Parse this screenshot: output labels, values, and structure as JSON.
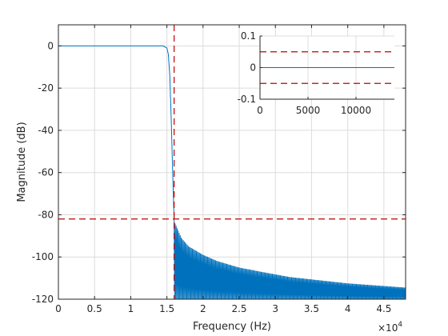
{
  "chart_data": [
    {
      "type": "line",
      "title": "",
      "xlabel": "Frequency (Hz)",
      "ylabel": "Magnitude (dB)",
      "x_exponent_label": "×10^4",
      "x_exponent_base": "×10",
      "x_exponent_power": "4",
      "xlim": [
        0,
        48000
      ],
      "ylim": [
        -120,
        10
      ],
      "xticks": [
        0,
        5000,
        10000,
        15000,
        20000,
        25000,
        30000,
        35000,
        40000,
        45000
      ],
      "xtick_labels": [
        "0",
        "0.5",
        "1",
        "1.5",
        "2",
        "2.5",
        "3",
        "3.5",
        "4",
        "4.5"
      ],
      "yticks": [
        0,
        -20,
        -40,
        -60,
        -80,
        -100,
        -120
      ],
      "ytick_labels": [
        "0",
        "-20",
        "-40",
        "-60",
        "-80",
        "-100",
        "-120"
      ],
      "grid": true,
      "series_color": "#0072bd",
      "reference_color": "#c00000",
      "passband": {
        "x": [
          0,
          14500
        ],
        "y": [
          0,
          0
        ]
      },
      "transition": {
        "x": [
          14500,
          15000,
          15200,
          15400,
          15600,
          15800,
          16000
        ],
        "y": [
          0,
          -1,
          -4,
          -14,
          -35,
          -60,
          -83
        ]
      },
      "stopband_envelope": {
        "x": [
          16000,
          17000,
          18000,
          20000,
          22000,
          25000,
          28000,
          32000,
          36000,
          40000,
          44000,
          48000
        ],
        "y": [
          -83,
          -91,
          -95,
          -99,
          -102,
          -105,
          -107,
          -109.5,
          -111,
          -112.5,
          -113.5,
          -114.5
        ]
      },
      "vertical_reference": {
        "x": 16000,
        "style": "dashed"
      },
      "horizontal_reference": {
        "y": -82,
        "style": "dashed"
      }
    },
    {
      "type": "line",
      "title": "",
      "xlabel": "",
      "ylabel": "",
      "xlim": [
        0,
        14000
      ],
      "ylim": [
        -0.1,
        0.1
      ],
      "xticks": [
        0,
        5000,
        10000
      ],
      "xtick_labels": [
        "0",
        "5000",
        "10000"
      ],
      "yticks": [
        0.1,
        0,
        -0.1
      ],
      "ytick_labels": [
        "0.1",
        "0",
        "-0.1"
      ],
      "grid": true,
      "series": [
        {
          "x": [
            0,
            14000
          ],
          "y": [
            0,
            0
          ]
        }
      ],
      "horizontal_references": [
        0.05,
        -0.05
      ]
    }
  ]
}
